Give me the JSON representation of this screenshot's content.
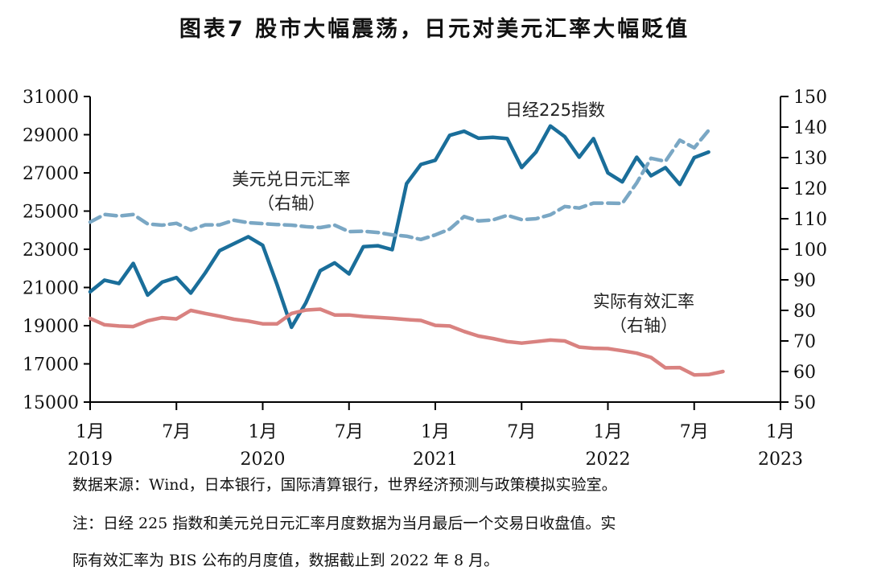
{
  "title": "图表7   股市大幅震荡，日元对美元汇率大幅贬值",
  "source": "数据来源：Wind，日本银行，国际清算银行，世界经济预测与政策模拟实验室。",
  "note_line1": "注：日经 225 指数和美元兑日元汇率月度数据为当月最后一个交易日收盘值。实",
  "note_line2": "际有效汇率为 BIS 公布的月度值，数据截止到 2022 年 8 月。",
  "chart_data": {
    "type": "line",
    "x_ticks": [
      {
        "label": "1月",
        "year": "2019",
        "month_index": 0
      },
      {
        "label": "7月",
        "year": "",
        "month_index": 6
      },
      {
        "label": "1月",
        "year": "2020",
        "month_index": 12
      },
      {
        "label": "7月",
        "year": "",
        "month_index": 18
      },
      {
        "label": "1月",
        "year": "2021",
        "month_index": 24
      },
      {
        "label": "7月",
        "year": "",
        "month_index": 30
      },
      {
        "label": "1月",
        "year": "2022",
        "month_index": 36
      },
      {
        "label": "7月",
        "year": "",
        "month_index": 42
      },
      {
        "label": "1月",
        "year": "2023",
        "month_index": 48
      }
    ],
    "x_range_months": [
      0,
      48
    ],
    "left_axis": {
      "min": 15000,
      "max": 31000,
      "ticks": [
        15000,
        17000,
        19000,
        21000,
        23000,
        25000,
        27000,
        29000,
        31000
      ]
    },
    "right_axis": {
      "min": 50,
      "max": 150,
      "ticks": [
        50,
        60,
        70,
        80,
        90,
        100,
        110,
        120,
        130,
        140,
        150
      ]
    },
    "grid": false,
    "series": [
      {
        "name": "日经225指数",
        "axis": "left",
        "color": "#1a6e9a",
        "dash": "solid",
        "label_lines": [
          "日经225指数"
        ],
        "start_month": 0,
        "values": [
          20773,
          21385,
          21206,
          22259,
          20601,
          21276,
          21522,
          20704,
          21756,
          22927,
          23294,
          23657,
          23205,
          21143,
          18917,
          20194,
          21878,
          22288,
          21710,
          23140,
          23185,
          22977,
          26434,
          27444,
          27663,
          28966,
          29179,
          28813,
          28860,
          28792,
          27284,
          28090,
          29453,
          28893,
          27822,
          28792,
          27002,
          26527,
          27821,
          26848,
          27280,
          26393,
          27802,
          28092
        ]
      },
      {
        "name": "美元兑日元汇率",
        "axis": "right",
        "color": "#7aa7c4",
        "dash": "dashed",
        "label_lines": [
          "美元兑日元汇率",
          "（右轴）"
        ],
        "start_month": 0,
        "values": [
          108.9,
          111.4,
          110.9,
          111.4,
          108.3,
          107.9,
          108.5,
          106.3,
          108.0,
          108.0,
          109.5,
          108.7,
          108.4,
          108.1,
          107.9,
          107.4,
          107.1,
          107.9,
          105.8,
          105.9,
          105.5,
          104.7,
          104.3,
          103.2,
          104.7,
          106.6,
          110.7,
          109.3,
          109.6,
          111.1,
          109.7,
          110.0,
          111.3,
          114.0,
          113.5,
          115.1,
          115.1,
          115.0,
          121.7,
          129.8,
          128.8,
          135.7,
          133.2,
          138.9
        ]
      },
      {
        "name": "实际有效汇率",
        "axis": "right",
        "color": "#d98280",
        "dash": "solid",
        "label_lines": [
          "实际有效汇率",
          "（右轴）"
        ],
        "start_month": 0,
        "values": [
          77.4,
          75.3,
          74.9,
          74.7,
          76.6,
          77.6,
          77.2,
          80.0,
          79.0,
          78.1,
          77.1,
          76.5,
          75.6,
          75.6,
          79.0,
          80.1,
          80.4,
          78.5,
          78.5,
          78.0,
          77.7,
          77.4,
          77.0,
          76.7,
          75.1,
          74.9,
          73.1,
          71.6,
          70.8,
          69.8,
          69.3,
          69.8,
          70.3,
          70.0,
          68.0,
          67.6,
          67.5,
          66.8,
          66.0,
          64.6,
          61.2,
          61.3,
          58.9,
          59.0,
          60.0
        ]
      }
    ]
  }
}
